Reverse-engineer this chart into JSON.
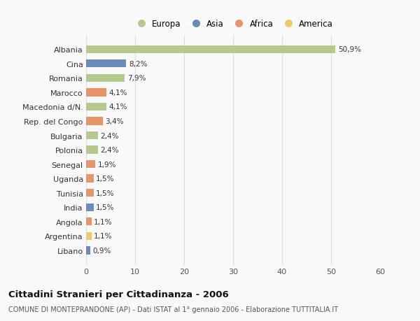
{
  "countries": [
    "Albania",
    "Cina",
    "Romania",
    "Marocco",
    "Macedonia d/N.",
    "Rep. del Congo",
    "Bulgaria",
    "Polonia",
    "Senegal",
    "Uganda",
    "Tunisia",
    "India",
    "Angola",
    "Argentina",
    "Libano"
  ],
  "values": [
    50.9,
    8.2,
    7.9,
    4.1,
    4.1,
    3.4,
    2.4,
    2.4,
    1.9,
    1.5,
    1.5,
    1.5,
    1.1,
    1.1,
    0.9
  ],
  "labels": [
    "50,9%",
    "8,2%",
    "7,9%",
    "4,1%",
    "4,1%",
    "3,4%",
    "2,4%",
    "2,4%",
    "1,9%",
    "1,5%",
    "1,5%",
    "1,5%",
    "1,1%",
    "1,1%",
    "0,9%"
  ],
  "colors": [
    "#b5c98e",
    "#6b8cba",
    "#b5c98e",
    "#e8946a",
    "#b5c98e",
    "#e8946a",
    "#b5c98e",
    "#b5c98e",
    "#e8946a",
    "#e8946a",
    "#e8946a",
    "#6b8cba",
    "#e8946a",
    "#f0c96e",
    "#6b8cba"
  ],
  "legend_labels": [
    "Europa",
    "Asia",
    "Africa",
    "America"
  ],
  "legend_colors": [
    "#b5c98e",
    "#6b8cba",
    "#e8946a",
    "#f0c96e"
  ],
  "title": "Cittadini Stranieri per Cittadinanza - 2006",
  "subtitle": "COMUNE DI MONTEPRANDONE (AP) - Dati ISTAT al 1° gennaio 2006 - Elaborazione TUTTITALIA.IT",
  "xlim": [
    0,
    60
  ],
  "xticks": [
    0,
    10,
    20,
    30,
    40,
    50,
    60
  ],
  "bg_color": "#f9f9f9",
  "grid_color": "#dddddd",
  "bar_height": 0.55
}
